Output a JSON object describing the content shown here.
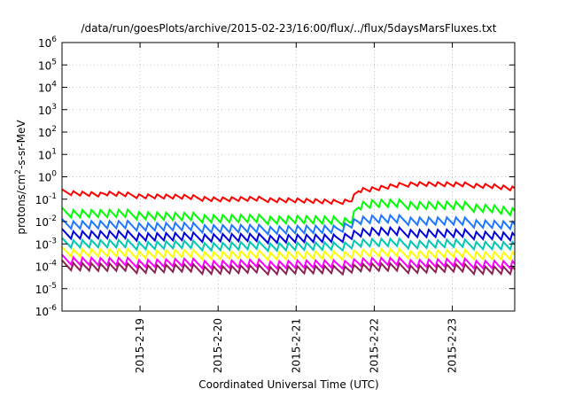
{
  "chart_data": {
    "type": "line",
    "title": "/data/run/goesPlots/archive/2015-02-23/16:00/flux/../flux/5daysMarsFluxes.txt",
    "xlabel": "Coordinated Universal Time (UTC)",
    "ylabel_parts": [
      "protons/cm",
      "2",
      "-s-sr-MeV"
    ],
    "y_scale": "log",
    "ylim_exp": [
      -6,
      6
    ],
    "y_ticks_exp": [
      -6,
      -5,
      -4,
      -3,
      -2,
      -1,
      0,
      1,
      2,
      3,
      4,
      5,
      6
    ],
    "y_tick_base": "10",
    "xlim_days": [
      0,
      5.8
    ],
    "x_ticks": [
      {
        "label": "2015-2-19",
        "x": 1.0
      },
      {
        "label": "2015-2-20",
        "x": 2.0
      },
      {
        "label": "2015-2-21",
        "x": 3.0
      },
      {
        "label": "2015-2-22",
        "x": 4.0
      },
      {
        "label": "2015-2-23",
        "x": 5.0
      }
    ],
    "grid": true,
    "series": [
      {
        "color": "#ff0000",
        "points": [
          [
            0.0,
            -0.68
          ],
          [
            0.5,
            -0.8
          ],
          [
            0.55,
            -0.75
          ],
          [
            1.0,
            -0.85
          ],
          [
            1.5,
            -0.9
          ],
          [
            2.0,
            -1.0
          ],
          [
            2.5,
            -1.0
          ],
          [
            3.0,
            -1.05
          ],
          [
            3.5,
            -1.15
          ],
          [
            3.7,
            -1.05
          ],
          [
            3.8,
            -0.6
          ],
          [
            4.0,
            -0.55
          ],
          [
            4.5,
            -0.3
          ],
          [
            5.0,
            -0.35
          ],
          [
            5.5,
            -0.4
          ],
          [
            5.8,
            -0.55
          ]
        ]
      },
      {
        "color": "#00ff00",
        "points": [
          [
            0.0,
            -1.6
          ],
          [
            0.5,
            -1.65
          ],
          [
            1.0,
            -1.7
          ],
          [
            1.5,
            -1.8
          ],
          [
            2.0,
            -1.85
          ],
          [
            2.5,
            -1.9
          ],
          [
            3.0,
            -1.9
          ],
          [
            3.5,
            -2.0
          ],
          [
            3.7,
            -1.95
          ],
          [
            3.8,
            -1.3
          ],
          [
            4.0,
            -1.2
          ],
          [
            4.5,
            -1.25
          ],
          [
            5.0,
            -1.3
          ],
          [
            5.5,
            -1.4
          ],
          [
            5.8,
            -1.6
          ]
        ]
      },
      {
        "color": "#1e78ff",
        "points": [
          [
            0.0,
            -2.1
          ],
          [
            0.5,
            -2.15
          ],
          [
            1.0,
            -2.2
          ],
          [
            1.5,
            -2.25
          ],
          [
            2.0,
            -2.3
          ],
          [
            2.5,
            -2.35
          ],
          [
            3.0,
            -2.35
          ],
          [
            3.5,
            -2.4
          ],
          [
            3.8,
            -1.95
          ],
          [
            4.0,
            -1.9
          ],
          [
            4.5,
            -1.95
          ],
          [
            5.0,
            -2.0
          ],
          [
            5.5,
            -2.1
          ],
          [
            5.8,
            -2.2
          ]
        ]
      },
      {
        "color": "#0000dd",
        "points": [
          [
            0.0,
            -2.55
          ],
          [
            0.5,
            -2.6
          ],
          [
            1.0,
            -2.65
          ],
          [
            1.5,
            -2.7
          ],
          [
            2.0,
            -2.7
          ],
          [
            2.5,
            -2.75
          ],
          [
            3.0,
            -2.75
          ],
          [
            3.5,
            -2.8
          ],
          [
            3.8,
            -2.5
          ],
          [
            4.0,
            -2.45
          ],
          [
            4.5,
            -2.5
          ],
          [
            5.0,
            -2.55
          ],
          [
            5.5,
            -2.6
          ],
          [
            5.8,
            -2.7
          ]
        ]
      },
      {
        "color": "#00c8b4",
        "points": [
          [
            0.0,
            -2.95
          ],
          [
            0.5,
            -3.0
          ],
          [
            1.0,
            -3.05
          ],
          [
            1.5,
            -3.05
          ],
          [
            2.0,
            -3.1
          ],
          [
            2.5,
            -3.1
          ],
          [
            3.0,
            -3.1
          ],
          [
            3.5,
            -3.15
          ],
          [
            3.8,
            -2.95
          ],
          [
            4.0,
            -2.95
          ],
          [
            4.5,
            -3.0
          ],
          [
            5.0,
            -3.0
          ],
          [
            5.5,
            -3.05
          ],
          [
            5.8,
            -3.1
          ]
        ]
      },
      {
        "color": "#ffff00",
        "points": [
          [
            0.0,
            -3.35
          ],
          [
            0.5,
            -3.4
          ],
          [
            1.0,
            -3.45
          ],
          [
            1.5,
            -3.45
          ],
          [
            2.0,
            -3.5
          ],
          [
            2.5,
            -3.5
          ],
          [
            3.0,
            -3.5
          ],
          [
            3.5,
            -3.55
          ],
          [
            3.8,
            -3.4
          ],
          [
            4.0,
            -3.4
          ],
          [
            4.5,
            -3.45
          ],
          [
            5.0,
            -3.45
          ],
          [
            5.5,
            -3.5
          ],
          [
            5.8,
            -3.55
          ]
        ]
      },
      {
        "color": "#ff00ff",
        "points": [
          [
            0.0,
            -3.7
          ],
          [
            0.5,
            -3.8
          ],
          [
            1.0,
            -3.85
          ],
          [
            1.5,
            -3.85
          ],
          [
            2.0,
            -3.9
          ],
          [
            2.5,
            -3.9
          ],
          [
            3.0,
            -3.9
          ],
          [
            3.5,
            -3.95
          ],
          [
            3.8,
            -3.8
          ],
          [
            4.0,
            -3.8
          ],
          [
            4.5,
            -3.85
          ],
          [
            5.0,
            -3.85
          ],
          [
            5.5,
            -3.9
          ],
          [
            5.8,
            -3.95
          ]
        ]
      },
      {
        "color": "#8b2252",
        "points": [
          [
            0.0,
            -3.95
          ],
          [
            0.5,
            -4.05
          ],
          [
            1.0,
            -4.1
          ],
          [
            1.5,
            -4.1
          ],
          [
            2.0,
            -4.15
          ],
          [
            2.5,
            -4.15
          ],
          [
            3.0,
            -4.15
          ],
          [
            3.5,
            -4.2
          ],
          [
            3.8,
            -4.05
          ],
          [
            4.0,
            -4.05
          ],
          [
            4.5,
            -4.1
          ],
          [
            5.0,
            -4.1
          ],
          [
            5.5,
            -4.15
          ],
          [
            5.8,
            -4.2
          ]
        ]
      }
    ]
  }
}
